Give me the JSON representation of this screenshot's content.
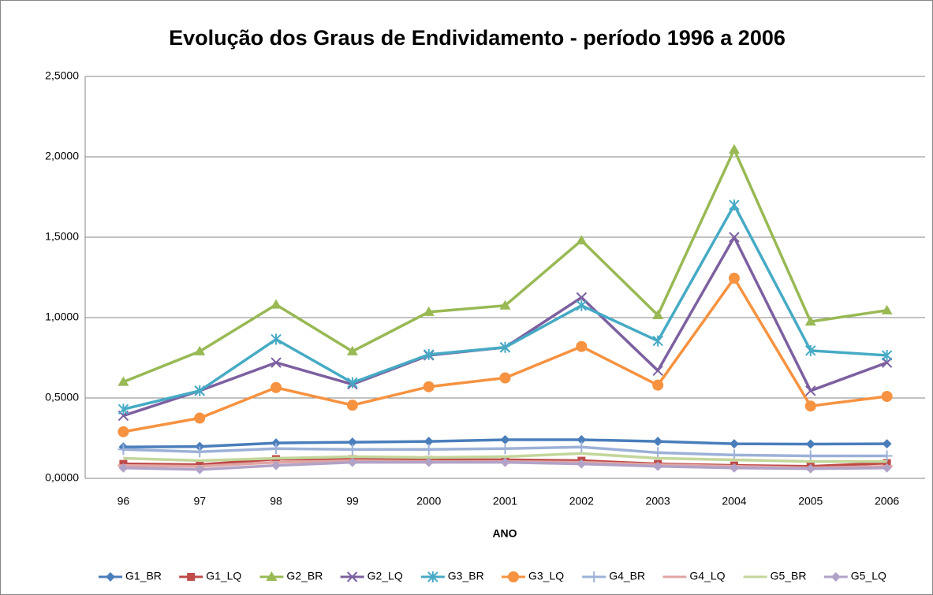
{
  "chart_data": {
    "type": "line",
    "title": "Evolução dos Graus de Endividamento - período 1996 a 2006",
    "x_label": "ANO",
    "categories": [
      "96",
      "97",
      "98",
      "99",
      "2000",
      "2001",
      "2002",
      "2003",
      "2004",
      "2005",
      "2006"
    ],
    "ylim": [
      0,
      2.5
    ],
    "yticks": [
      {
        "value": 0,
        "label": "0,0000"
      },
      {
        "value": 0.5,
        "label": "0,5000"
      },
      {
        "value": 1,
        "label": "1,0000"
      },
      {
        "value": 1.5,
        "label": "1,5000"
      },
      {
        "value": 2,
        "label": "2,0000"
      },
      {
        "value": 2.5,
        "label": "2,5000"
      }
    ],
    "grid": true,
    "legend": "bottom",
    "series": [
      {
        "name": "G1_BR",
        "color": "#4a7ebb",
        "marker": "diamond",
        "values": [
          0.195,
          0.198,
          0.22,
          0.225,
          0.23,
          0.24,
          0.24,
          0.23,
          0.215,
          0.213,
          0.215
        ]
      },
      {
        "name": "G1_LQ",
        "color": "#be4b48",
        "marker": "square",
        "values": [
          0.09,
          0.085,
          0.12,
          0.12,
          0.115,
          0.115,
          0.11,
          0.09,
          0.08,
          0.075,
          0.095
        ]
      },
      {
        "name": "G2_BR",
        "color": "#98b954",
        "marker": "triangle",
        "values": [
          0.6,
          0.79,
          1.08,
          0.79,
          1.035,
          1.075,
          1.48,
          1.015,
          2.045,
          0.975,
          1.045
        ]
      },
      {
        "name": "G2_LQ",
        "color": "#7d60a0",
        "marker": "x",
        "values": [
          0.39,
          0.545,
          0.72,
          0.585,
          0.765,
          0.815,
          1.125,
          0.67,
          1.5,
          0.545,
          0.72
        ]
      },
      {
        "name": "G3_BR",
        "color": "#46aac5",
        "marker": "star",
        "values": [
          0.43,
          0.545,
          0.865,
          0.595,
          0.77,
          0.815,
          1.075,
          0.855,
          1.7,
          0.795,
          0.765
        ]
      },
      {
        "name": "G3_LQ",
        "color": "#f69240",
        "marker": "circle",
        "values": [
          0.29,
          0.375,
          0.565,
          0.455,
          0.57,
          0.625,
          0.82,
          0.58,
          1.245,
          0.45,
          0.51
        ]
      },
      {
        "name": "G4_BR",
        "color": "#9cb1d7",
        "marker": "plus",
        "values": [
          0.18,
          0.165,
          0.185,
          0.18,
          0.18,
          0.185,
          0.195,
          0.16,
          0.145,
          0.14,
          0.14
        ]
      },
      {
        "name": "G4_LQ",
        "color": "#e0a5a3",
        "marker": "dash",
        "values": [
          0.08,
          0.075,
          0.1,
          0.11,
          0.105,
          0.105,
          0.1,
          0.085,
          0.075,
          0.065,
          0.075
        ]
      },
      {
        "name": "G5_BR",
        "color": "#c3d69b",
        "marker": "none",
        "values": [
          0.125,
          0.11,
          0.125,
          0.135,
          0.13,
          0.135,
          0.155,
          0.125,
          0.115,
          0.105,
          0.105
        ]
      },
      {
        "name": "G5_LQ",
        "color": "#b2a2c7",
        "marker": "diamond",
        "values": [
          0.065,
          0.055,
          0.08,
          0.1,
          0.1,
          0.1,
          0.09,
          0.075,
          0.065,
          0.06,
          0.065
        ]
      }
    ]
  }
}
